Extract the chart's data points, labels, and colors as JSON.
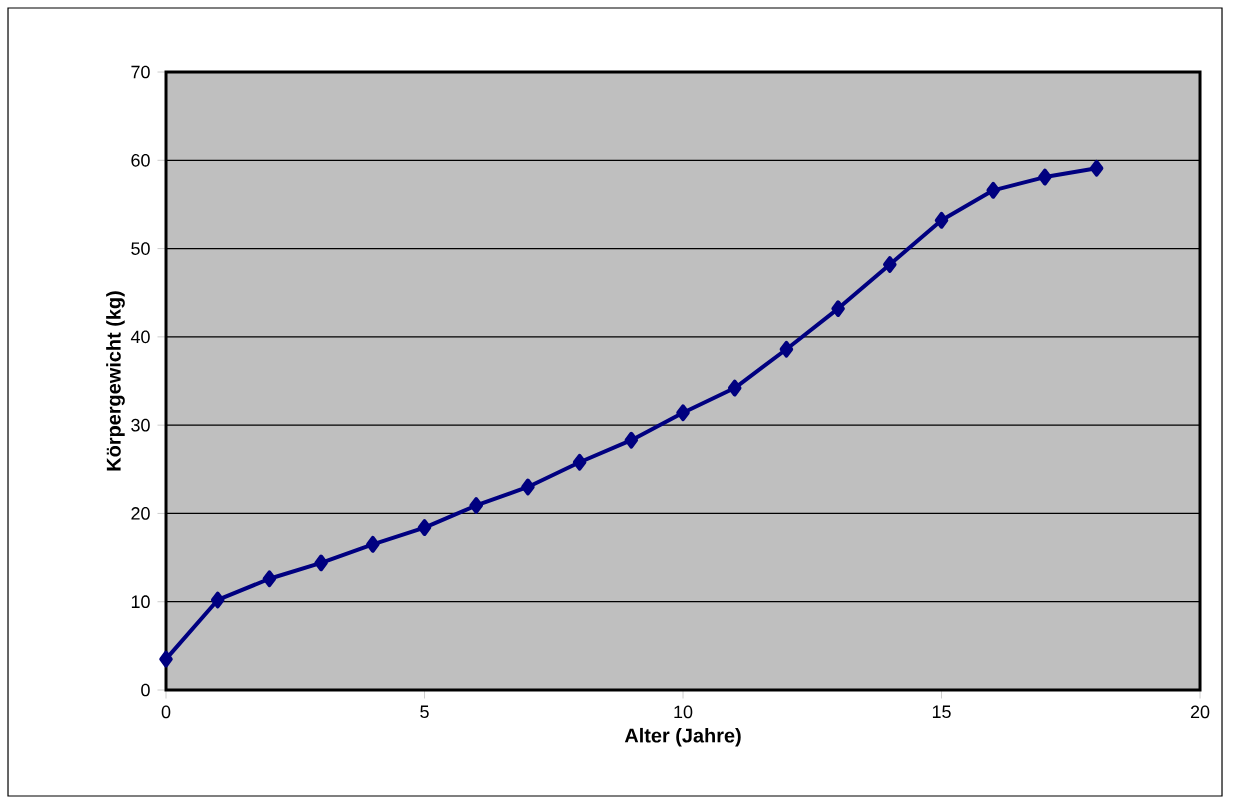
{
  "chart_data": {
    "type": "line",
    "xlabel": "Alter (Jahre)",
    "ylabel": "Körpergewicht (kg)",
    "x": [
      0,
      1,
      2,
      3,
      4,
      5,
      6,
      7,
      8,
      9,
      10,
      11,
      12,
      13,
      14,
      15,
      16,
      17,
      18
    ],
    "series": [
      {
        "color": "#000080",
        "values": [
          3.5,
          10.2,
          12.6,
          14.4,
          16.5,
          18.4,
          20.9,
          23.0,
          25.8,
          28.3,
          31.4,
          34.2,
          38.6,
          43.2,
          48.2,
          53.2,
          56.6,
          58.1,
          59.1
        ]
      }
    ],
    "xlim": [
      0,
      20
    ],
    "ylim": [
      0,
      70
    ],
    "xticks": [
      0,
      5,
      10,
      15,
      20
    ],
    "yticks": [
      0,
      10,
      20,
      30,
      40,
      50,
      60,
      70
    ],
    "grid": "y",
    "marker": "diamond",
    "line_style": "solid"
  }
}
